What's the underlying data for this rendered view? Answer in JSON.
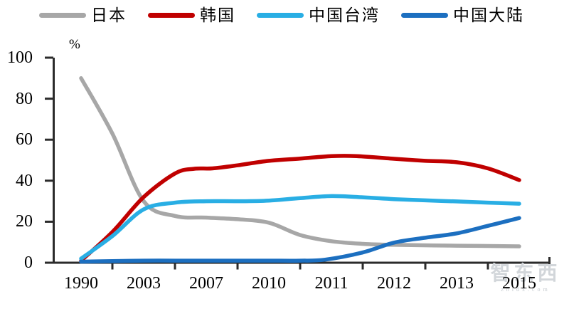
{
  "watermark": {
    "logo": "智东西",
    "domain": "zhidx.com"
  },
  "chart_data": {
    "type": "line",
    "title": "",
    "xlabel": "",
    "ylabel": "%",
    "categories": [
      "1990",
      "2003",
      "2007",
      "2010",
      "2011",
      "2012",
      "2013",
      "2015"
    ],
    "yticks": [
      0,
      20,
      40,
      60,
      80,
      100
    ],
    "ylim": [
      0,
      100
    ],
    "grid": false,
    "smooth": true,
    "legend_position": "top",
    "axis_color": "#2b2b2b",
    "series": [
      {
        "key": "japan",
        "name": "日本",
        "color": "#A7A7A7",
        "values": [
          90,
          30,
          22,
          19.5,
          10.5,
          9,
          8.5,
          8
        ],
        "shape": [
          [
            0,
            90
          ],
          [
            0.5,
            63
          ],
          [
            1,
            30
          ],
          [
            1.5,
            22.8
          ],
          [
            2,
            22
          ],
          [
            2.5,
            21.2
          ],
          [
            3,
            19.5
          ],
          [
            3.5,
            13.5
          ],
          [
            4,
            10.5
          ],
          [
            4.5,
            9.2
          ],
          [
            5,
            8.7
          ],
          [
            6,
            8.3
          ],
          [
            7,
            8
          ]
        ]
      },
      {
        "key": "korea",
        "name": "韩国",
        "color": "#C00000",
        "values": [
          1,
          32,
          46,
          49.5,
          52,
          50.5,
          49,
          40
        ],
        "shape": [
          [
            0,
            1
          ],
          [
            0.5,
            15
          ],
          [
            1,
            32
          ],
          [
            1.5,
            43.5
          ],
          [
            1.8,
            45.8
          ],
          [
            2.1,
            46
          ],
          [
            2.5,
            47.5
          ],
          [
            3,
            49.7
          ],
          [
            3.5,
            50.8
          ],
          [
            4,
            52
          ],
          [
            4.4,
            52
          ],
          [
            5,
            50.7
          ],
          [
            5.5,
            49.7
          ],
          [
            6,
            49
          ],
          [
            6.5,
            46
          ],
          [
            7,
            40.3
          ]
        ]
      },
      {
        "key": "taiwan-china",
        "name": "中国台湾",
        "color": "#29AEE4",
        "values": [
          2,
          26,
          30,
          30,
          32.5,
          31,
          30,
          29
        ],
        "shape": [
          [
            0,
            2
          ],
          [
            0.5,
            13
          ],
          [
            1,
            26
          ],
          [
            1.5,
            29.3
          ],
          [
            2,
            30
          ],
          [
            2.5,
            30
          ],
          [
            3,
            30.3
          ],
          [
            3.5,
            31.5
          ],
          [
            4,
            32.5
          ],
          [
            4.5,
            31.9
          ],
          [
            5,
            31
          ],
          [
            5.5,
            30.4
          ],
          [
            6,
            29.9
          ],
          [
            6.5,
            29.3
          ],
          [
            7,
            28.8
          ]
        ]
      },
      {
        "key": "mainland-china",
        "name": "中国大陆",
        "color": "#1C6FC0",
        "values": [
          0.5,
          1,
          1,
          1,
          1.5,
          10,
          14.5,
          22
        ],
        "shape": [
          [
            0,
            0.5
          ],
          [
            0.5,
            0.8
          ],
          [
            1,
            1
          ],
          [
            1.5,
            1
          ],
          [
            2,
            1
          ],
          [
            2.5,
            1
          ],
          [
            3,
            1
          ],
          [
            3.5,
            1
          ],
          [
            3.9,
            1.5
          ],
          [
            4.5,
            5
          ],
          [
            5,
            9.8
          ],
          [
            5.5,
            12.2
          ],
          [
            6,
            14.3
          ],
          [
            6.5,
            18
          ],
          [
            7,
            21.8
          ]
        ]
      }
    ]
  }
}
